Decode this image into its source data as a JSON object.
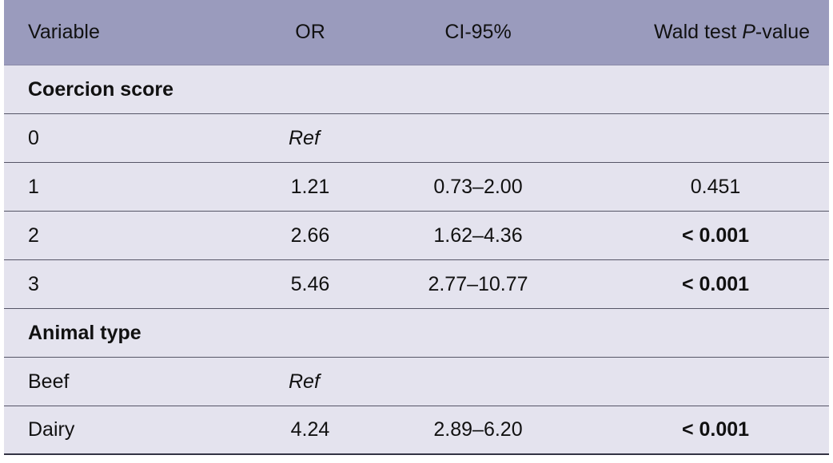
{
  "header": {
    "variable": "Variable",
    "or": "OR",
    "ci": "CI-95%",
    "p_prefix": "Wald test ",
    "p_italic": "P",
    "p_suffix": "-value"
  },
  "sections": {
    "coercion": "Coercion score",
    "animal": "Animal type"
  },
  "rows": {
    "c0": {
      "variable": "0",
      "or": "Ref",
      "ci": "",
      "p": ""
    },
    "c1": {
      "variable": "1",
      "or": "1.21",
      "ci": "0.73–2.00",
      "p": "0.451"
    },
    "c2": {
      "variable": "2",
      "or": "2.66",
      "ci": "1.62–4.36",
      "p": "< 0.001"
    },
    "c3": {
      "variable": "3",
      "or": "5.46",
      "ci": "2.77–10.77",
      "p": "< 0.001"
    },
    "beef": {
      "variable": "Beef",
      "or": "Ref",
      "ci": "",
      "p": ""
    },
    "dairy": {
      "variable": "Dairy",
      "or": "4.24",
      "ci": "2.89–6.20",
      "p": "< 0.001"
    }
  }
}
